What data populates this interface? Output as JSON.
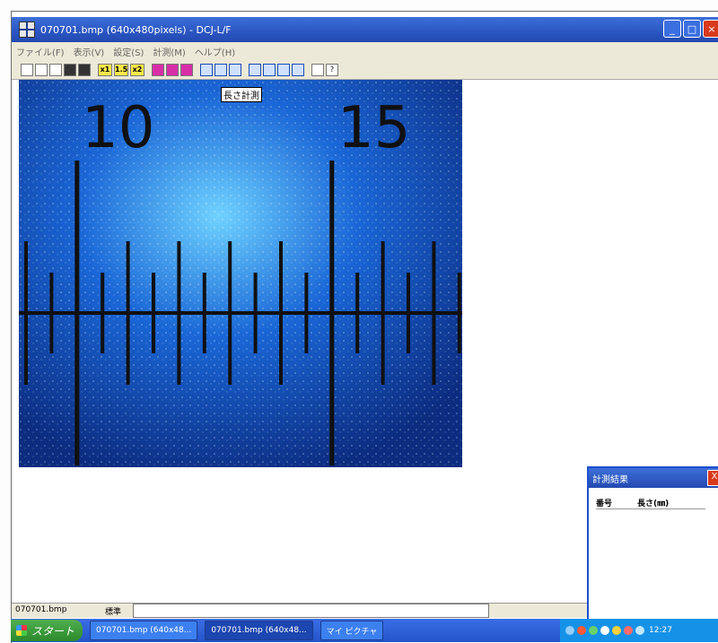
{
  "window": {
    "title": "070701.bmp (640x480pixels) - DCJ-L/F",
    "buttons": [
      "_",
      "□",
      "×"
    ]
  },
  "menu": [
    "ファイル(F)",
    "表示(V)",
    "設定(S)",
    "計測(M)",
    "ヘルプ(H)"
  ],
  "toolbar": {
    "file_icons": [
      "open-icon",
      "save-icon",
      "export-icon",
      "disk-icon",
      "disk2-icon"
    ],
    "zoom_labels": [
      "x1",
      "1.5",
      "x2"
    ],
    "tool_icons": [
      "grid-icon",
      "bar-icon",
      "columns-icon",
      "line-icon",
      "circle-icon",
      "rect-icon",
      "angle-icon",
      "cross-icon",
      "measure-icon",
      "scale-icon",
      "print-icon",
      "help-icon"
    ]
  },
  "image": {
    "scale_labels": [
      "10",
      "15"
    ],
    "overlay_label": "長さ計測",
    "colors": {
      "background": "#0c3a9a",
      "highlight": "#6fd2ff",
      "tick": "#101010"
    }
  },
  "status": {
    "file": "070701.bmp",
    "mode": "標準",
    "field": ""
  },
  "results": {
    "title": "計測結果",
    "columns": [
      "番号",
      "長さ(㎜)"
    ],
    "close_label": "X"
  },
  "taskbar": {
    "start_label": "スタート",
    "items": [
      "070701.bmp (640x48...",
      "070701.bmp (640x48...",
      "マイ ピクチャ"
    ],
    "clock": "12:27"
  }
}
